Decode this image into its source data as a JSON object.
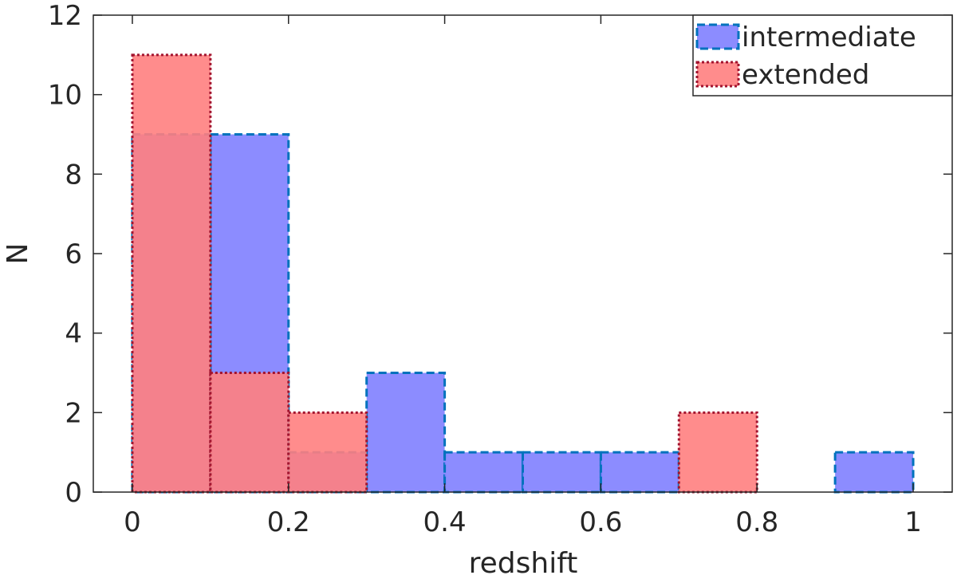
{
  "chart_data": {
    "type": "bar",
    "subtype": "overlapping-histogram",
    "xlabel": "redshift",
    "ylabel": "N",
    "xlim": [
      -0.05,
      1.05
    ],
    "ylim": [
      0,
      12
    ],
    "bin_edges": [
      0,
      0.1,
      0.2,
      0.3,
      0.4,
      0.5,
      0.6,
      0.7,
      0.8,
      0.9,
      1.0
    ],
    "x_ticks": [
      0,
      0.2,
      0.4,
      0.6,
      0.8,
      1
    ],
    "x_tick_labels": [
      "0",
      "0.2",
      "0.4",
      "0.6",
      "0.8",
      "1"
    ],
    "y_ticks": [
      0,
      2,
      4,
      6,
      8,
      10,
      12
    ],
    "y_tick_labels": [
      "0",
      "2",
      "4",
      "6",
      "8",
      "10",
      "12"
    ],
    "grid": false,
    "legend_position": "top-right",
    "series": [
      {
        "name": "intermediate",
        "values": [
          9,
          9,
          1,
          3,
          1,
          1,
          1,
          0,
          0,
          1
        ],
        "fill": "#8080ff",
        "edge": "#0072bd",
        "edge_style": "dashed"
      },
      {
        "name": "extended",
        "values": [
          11,
          3,
          2,
          0,
          0,
          0,
          0,
          2,
          0,
          0
        ],
        "fill": "#ff8080",
        "edge": "#a2142f",
        "edge_style": "dotted"
      }
    ]
  }
}
